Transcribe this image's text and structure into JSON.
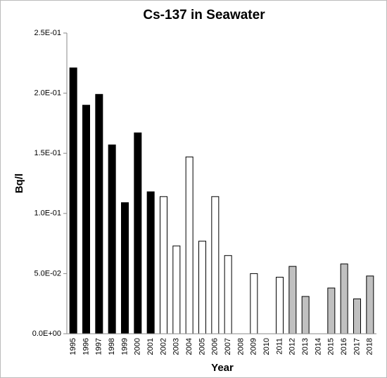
{
  "chart_data": {
    "type": "bar",
    "title": "Cs-137 in Seawater",
    "x_label": "Year",
    "y_label": "Bq/l",
    "categories": [
      "1995",
      "1996",
      "1997",
      "1998",
      "1999",
      "2000",
      "2001",
      "2002",
      "2003",
      "2004",
      "2005",
      "2006",
      "2007",
      "2008",
      "2009",
      "2010",
      "2011",
      "2012",
      "2013",
      "2014",
      "2015",
      "2016",
      "2017",
      "2018"
    ],
    "values": [
      0.221,
      0.19,
      0.199,
      0.157,
      0.109,
      0.167,
      0.118,
      0.114,
      0.073,
      0.147,
      0.077,
      0.114,
      0.065,
      null,
      0.05,
      null,
      0.047,
      0.056,
      0.031,
      null,
      0.038,
      0.058,
      0.029,
      0.048
    ],
    "colors": [
      "#000000",
      "#000000",
      "#000000",
      "#000000",
      "#000000",
      "#000000",
      "#000000",
      "#ffffff",
      "#ffffff",
      "#ffffff",
      "#ffffff",
      "#ffffff",
      "#ffffff",
      "#ffffff",
      "#ffffff",
      "#ffffff",
      "#ffffff",
      "#c0c0c0",
      "#c0c0c0",
      "#c0c0c0",
      "#c0c0c0",
      "#c0c0c0",
      "#c0c0c0",
      "#c0c0c0"
    ],
    "ylim": [
      0,
      0.25
    ],
    "yticks": [
      {
        "value": 0,
        "label": "0.0E+00"
      },
      {
        "value": 0.05,
        "label": "5.0E-02"
      },
      {
        "value": 0.1,
        "label": "1.0E-01"
      },
      {
        "value": 0.15,
        "label": "1.5E-01"
      },
      {
        "value": 0.2,
        "label": "2.0E-01"
      },
      {
        "value": 0.25,
        "label": "2.5E-01"
      }
    ],
    "grid": false
  }
}
